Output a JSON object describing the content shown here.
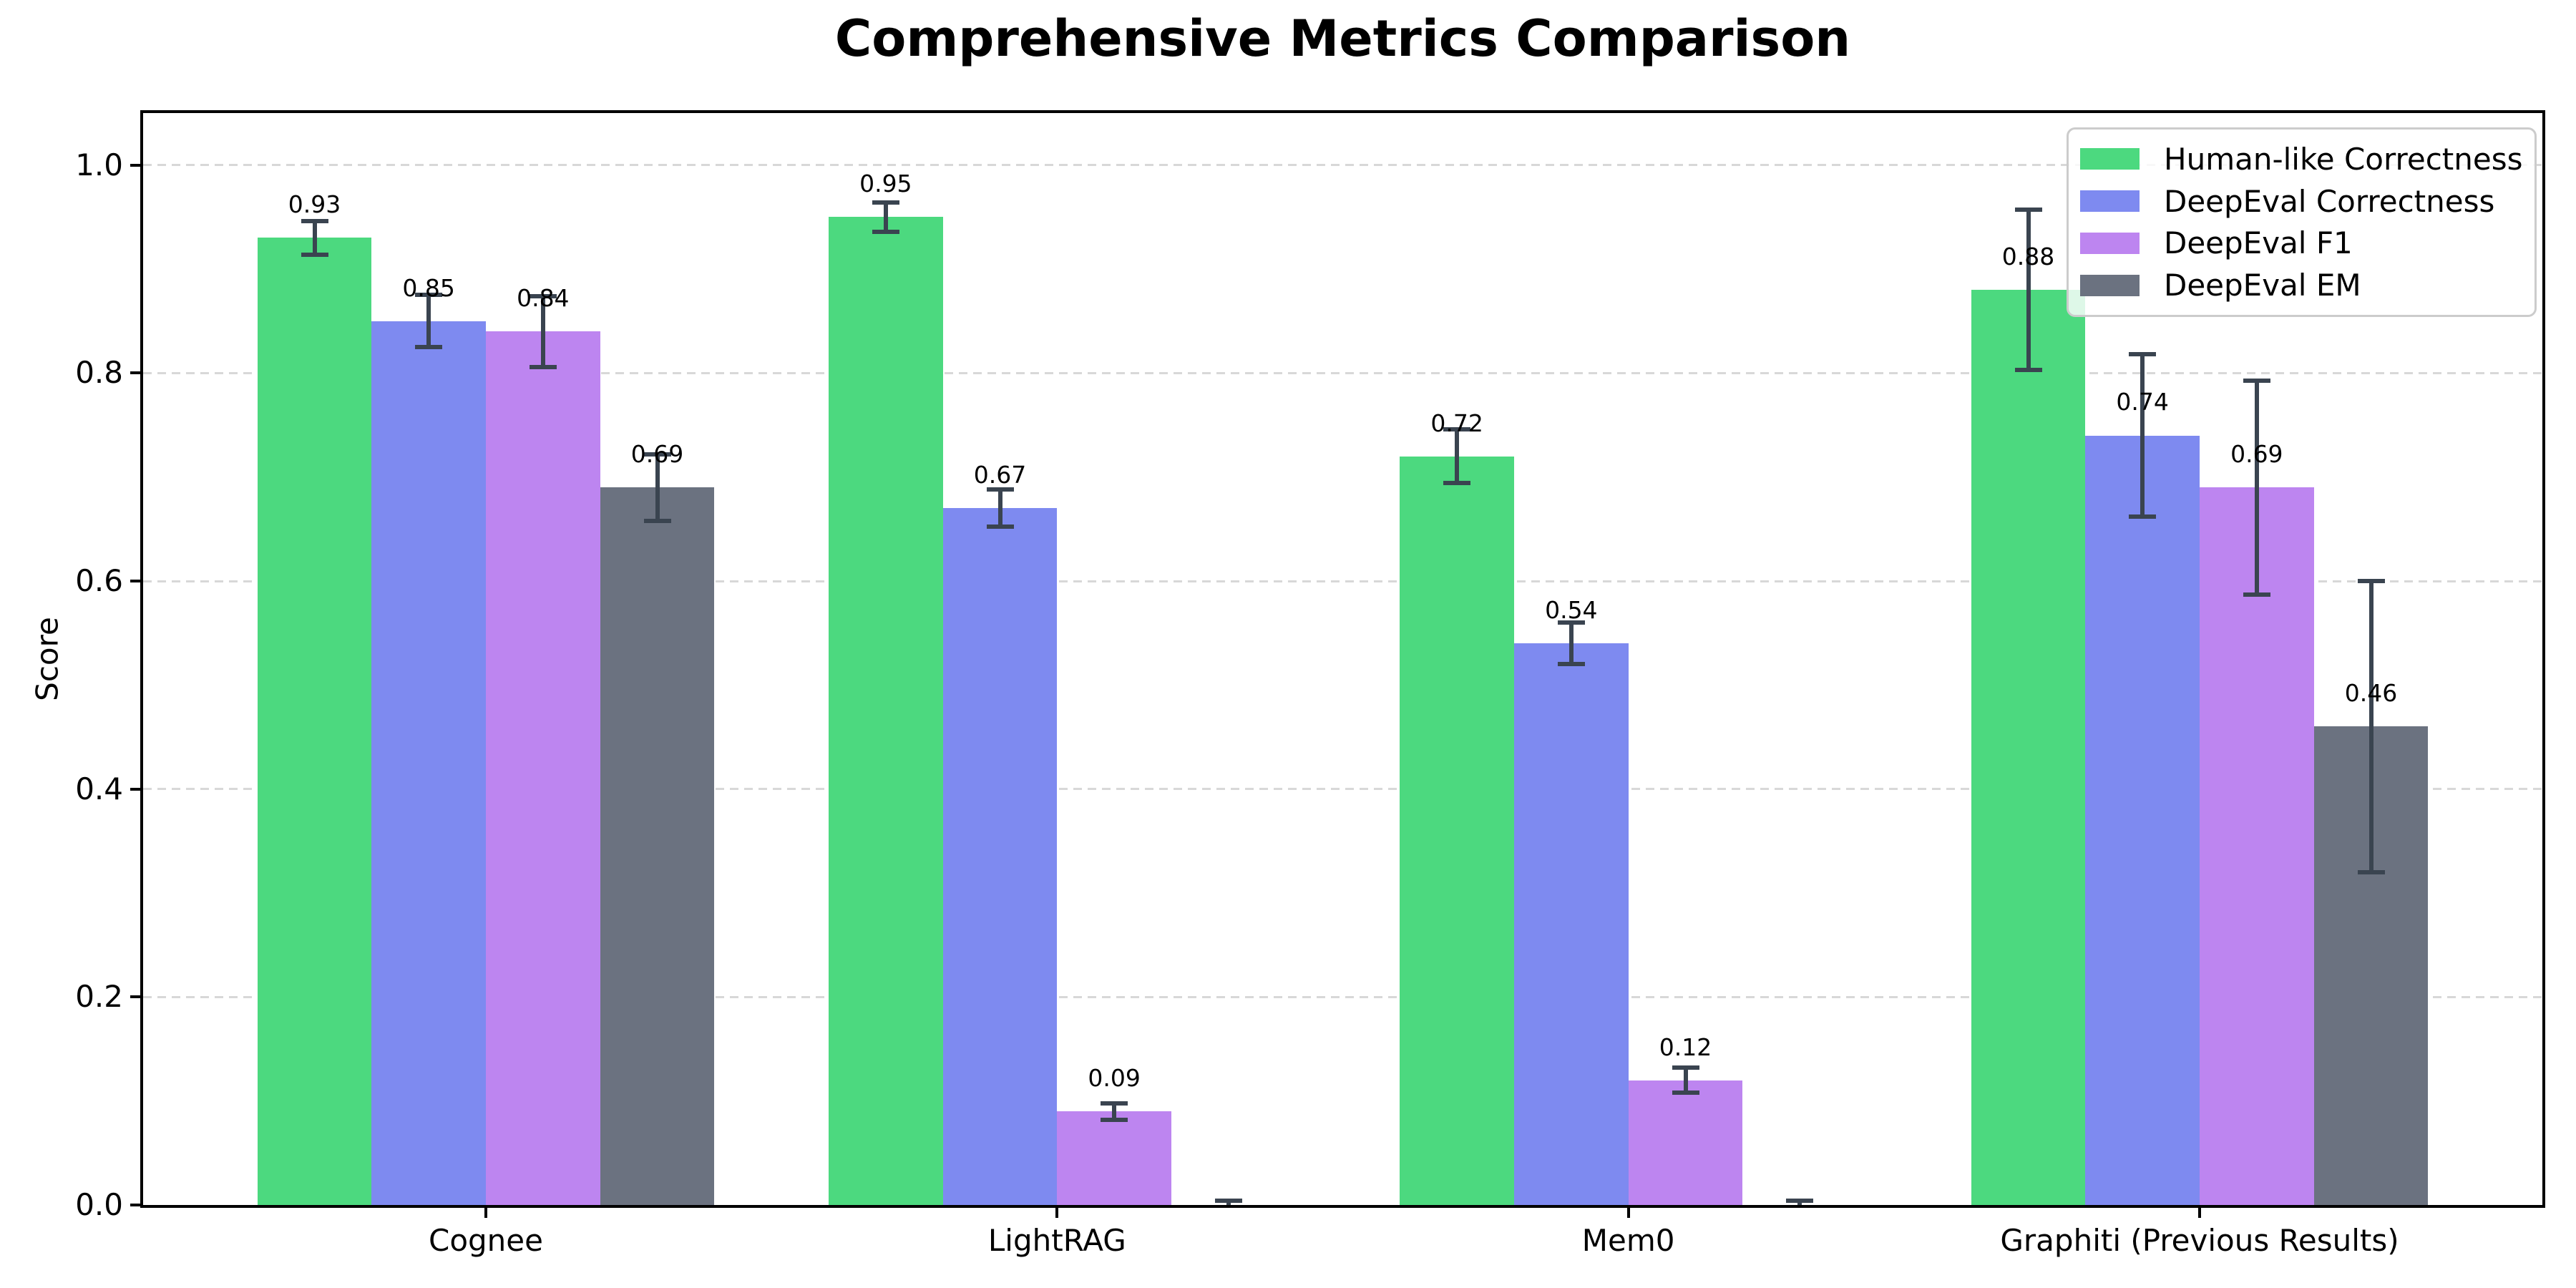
{
  "chart_data": {
    "type": "bar",
    "title": "Comprehensive Metrics Comparison",
    "xlabel": "",
    "ylabel": "Score",
    "categories": [
      "Cognee",
      "LightRAG",
      "Mem0",
      "Graphiti (Previous Results)"
    ],
    "series": [
      {
        "name": "Human-like Correctness",
        "color": "#4cd97f",
        "values": [
          0.93,
          0.95,
          0.72,
          0.88
        ],
        "errors": [
          0.016,
          0.014,
          0.026,
          0.077
        ],
        "labels": [
          "0.93",
          "0.95",
          "0.72",
          "0.88"
        ]
      },
      {
        "name": "DeepEval Correctness",
        "color": "#7e8af0",
        "values": [
          0.85,
          0.67,
          0.54,
          0.74
        ],
        "errors": [
          0.025,
          0.018,
          0.02,
          0.078
        ],
        "labels": [
          "0.85",
          "0.67",
          "0.54",
          "0.74"
        ]
      },
      {
        "name": "DeepEval F1",
        "color": "#bd85f0",
        "values": [
          0.84,
          0.09,
          0.12,
          0.69
        ],
        "errors": [
          0.034,
          0.008,
          0.012,
          0.103
        ],
        "labels": [
          "0.84",
          "0.09",
          "0.12",
          "0.69"
        ]
      },
      {
        "name": "DeepEval EM",
        "color": "#6b7280",
        "values": [
          0.69,
          0.0,
          0.0,
          0.46
        ],
        "errors": [
          0.032,
          0.004,
          0.004,
          0.14
        ],
        "labels": [
          "0.69",
          "",
          "",
          "0.46"
        ]
      }
    ],
    "yticks": [
      0.0,
      0.2,
      0.4,
      0.6,
      0.8,
      1.0
    ],
    "ytick_labels": [
      "0.0",
      "0.2",
      "0.4",
      "0.6",
      "0.8",
      "1.0"
    ],
    "ylim": [
      0,
      1.05
    ],
    "xlim": [
      -0.6,
      3.6
    ],
    "bar_width": 0.2,
    "bar_offsets": [
      -0.3,
      -0.1,
      0.1,
      0.3
    ],
    "value_label_offset": 0.02,
    "grid": {
      "axis": "y",
      "style": "dashed",
      "color": "#d8d8d8"
    },
    "legend": {
      "position": "upper right",
      "border_color": "#cccccc"
    },
    "colors": {
      "error_bar": "#3a4450",
      "spine": "#000000",
      "text": "#000000",
      "background": "#ffffff"
    }
  }
}
